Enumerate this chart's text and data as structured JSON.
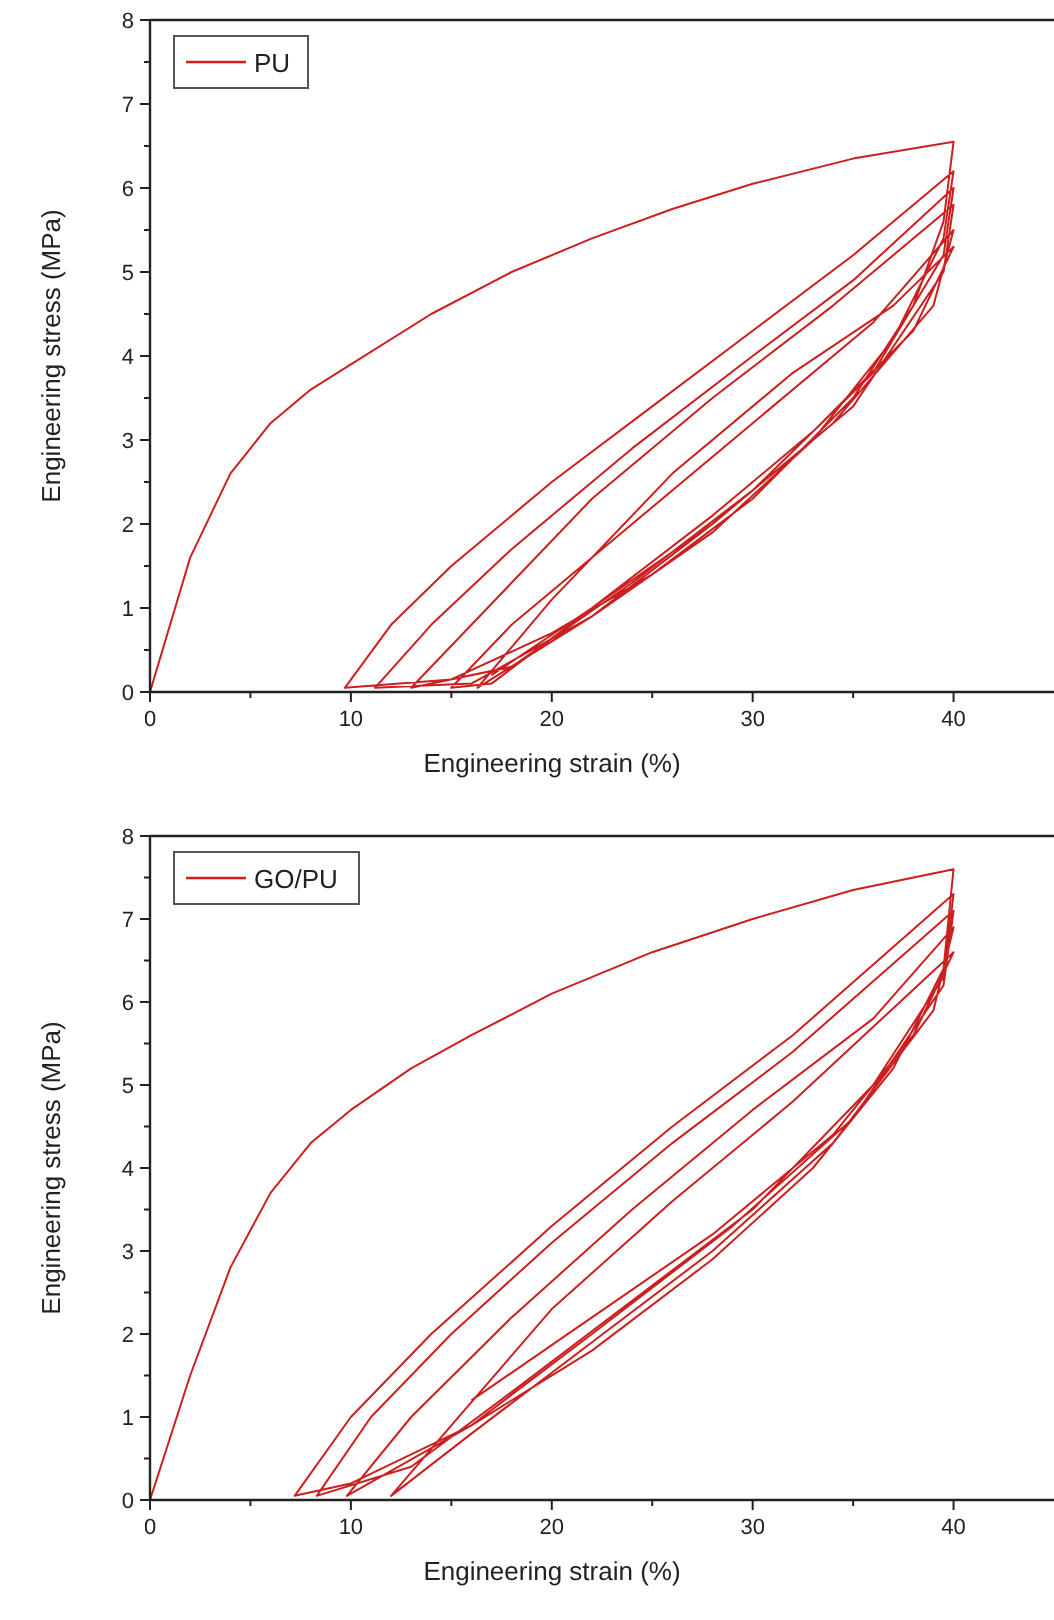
{
  "chart_data": [
    {
      "type": "line",
      "xlabel": "Engineering strain (%)",
      "ylabel": "Engineering stress (MPa)",
      "xlim": [
        0,
        45
      ],
      "ylim": [
        0,
        8
      ],
      "xticks": [
        0,
        {
          "value": 5,
          "label": null
        },
        10,
        {
          "value": 15,
          "label": null
        },
        20,
        {
          "value": 25,
          "label": null
        },
        30,
        {
          "value": 35,
          "label": null
        },
        40
      ],
      "yticks": [
        0,
        {
          "value": 0.5,
          "label": null
        },
        1,
        {
          "value": 1.5,
          "label": null
        },
        2,
        {
          "value": 2.5,
          "label": null
        },
        3,
        {
          "value": 3.5,
          "label": null
        },
        4,
        {
          "value": 4.5,
          "label": null
        },
        5,
        {
          "value": 5.5,
          "label": null
        },
        6,
        {
          "value": 6.5,
          "label": null
        },
        7,
        {
          "value": 7.5,
          "label": null
        },
        8
      ],
      "legend": "top left",
      "grid": false,
      "marker": "none",
      "line_style": "solid",
      "series": [
        {
          "name": "PU",
          "color": "#cc1f1f",
          "x": [
            0,
            2,
            4,
            6,
            8,
            10,
            14,
            18,
            22,
            26,
            30,
            35,
            40,
            39.5,
            38,
            35,
            30,
            25,
            20,
            15,
            9.7,
            12,
            15,
            20,
            25,
            30,
            35,
            40,
            39.5,
            37,
            33,
            28,
            22,
            16,
            11.2,
            14,
            18,
            24,
            30,
            35,
            40,
            39.5,
            36,
            30,
            24,
            18,
            13,
            16,
            22,
            28,
            34,
            40,
            39.5,
            35,
            28,
            22,
            17,
            15,
            18,
            24,
            30,
            36,
            40,
            39,
            34,
            28,
            22,
            16.3,
            20,
            26,
            32,
            37,
            40,
            38,
            33,
            28,
            22,
            17
          ],
          "values": [
            0,
            1.6,
            2.6,
            3.2,
            3.6,
            3.9,
            4.5,
            5.0,
            5.4,
            5.75,
            6.05,
            6.35,
            6.55,
            5.6,
            4.6,
            3.5,
            2.3,
            1.4,
            0.7,
            0.15,
            0.05,
            0.8,
            1.5,
            2.5,
            3.4,
            4.3,
            5.2,
            6.2,
            5.4,
            4.2,
            3.0,
            1.9,
            0.9,
            0.1,
            0.05,
            0.8,
            1.7,
            2.9,
            4.0,
            4.9,
            6.0,
            5.2,
            3.8,
            2.4,
            1.3,
            0.3,
            0.05,
            0.8,
            2.3,
            3.5,
            4.6,
            5.8,
            5.0,
            3.4,
            2.0,
            1.0,
            0.1,
            0.05,
            0.8,
            2.0,
            3.2,
            4.4,
            5.5,
            4.6,
            3.2,
            2.0,
            0.9,
            0.05,
            1.1,
            2.6,
            3.8,
            4.6,
            5.3,
            4.3,
            3.1,
            2.1,
            1.0,
            0.2
          ]
        }
      ]
    },
    {
      "type": "line",
      "xlabel": "Engineering strain (%)",
      "ylabel": "Engineering stress (MPa)",
      "xlim": [
        0,
        45
      ],
      "ylim": [
        0,
        8
      ],
      "xticks": [
        0,
        {
          "value": 5,
          "label": null
        },
        10,
        {
          "value": 15,
          "label": null
        },
        20,
        {
          "value": 25,
          "label": null
        },
        30,
        {
          "value": 35,
          "label": null
        },
        40
      ],
      "yticks": [
        0,
        {
          "value": 0.5,
          "label": null
        },
        1,
        {
          "value": 1.5,
          "label": null
        },
        2,
        {
          "value": 2.5,
          "label": null
        },
        3,
        {
          "value": 3.5,
          "label": null
        },
        4,
        {
          "value": 4.5,
          "label": null
        },
        5,
        {
          "value": 5.5,
          "label": null
        },
        6,
        {
          "value": 6.5,
          "label": null
        },
        7,
        {
          "value": 7.5,
          "label": null
        },
        8
      ],
      "legend": "top left",
      "grid": false,
      "marker": "none",
      "line_style": "solid",
      "series": [
        {
          "name": "GO/PU",
          "color": "#cc1f1f",
          "x": [
            0,
            2,
            4,
            6,
            8,
            10,
            13,
            16,
            20,
            25,
            30,
            35,
            40,
            39.5,
            37,
            33,
            28,
            22,
            16,
            10,
            7.2,
            10,
            14,
            20,
            26,
            32,
            40,
            39.5,
            36,
            30,
            24,
            18,
            13,
            8.3,
            11,
            15,
            20,
            26,
            32,
            40,
            39.5,
            35,
            29,
            22,
            16,
            9.8,
            13,
            18,
            24,
            30,
            36,
            40,
            39,
            34,
            28,
            22,
            16,
            12,
            15,
            20,
            26,
            32,
            40,
            38,
            34,
            28,
            22,
            16
          ],
          "values": [
            0,
            1.5,
            2.8,
            3.7,
            4.3,
            4.7,
            5.2,
            5.6,
            6.1,
            6.6,
            7.0,
            7.35,
            7.6,
            6.4,
            5.2,
            4.0,
            2.9,
            1.8,
            0.9,
            0.2,
            0.05,
            1.0,
            2.0,
            3.3,
            4.5,
            5.6,
            7.3,
            6.3,
            5.0,
            3.5,
            2.4,
            1.3,
            0.4,
            0.05,
            1.0,
            2.0,
            3.1,
            4.3,
            5.4,
            7.1,
            6.2,
            4.6,
            3.3,
            2.0,
            0.9,
            0.05,
            1.0,
            2.2,
            3.5,
            4.7,
            5.8,
            6.9,
            5.9,
            4.3,
            3.0,
            1.9,
            0.8,
            0.05,
            0.9,
            2.3,
            3.6,
            4.8,
            6.6,
            5.6,
            4.4,
            3.2,
            2.2,
            1.2
          ]
        }
      ]
    }
  ]
}
